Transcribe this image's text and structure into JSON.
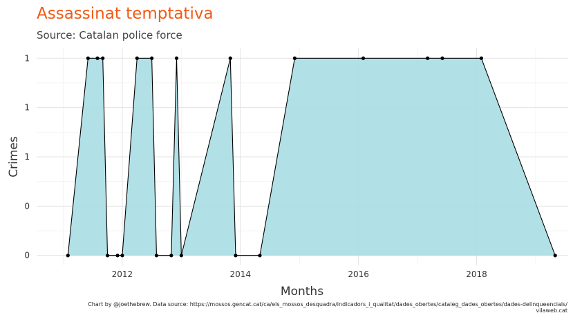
{
  "chart_data": {
    "type": "area",
    "title": "Assassinat temptativa",
    "subtitle": "Source: Catalan police force",
    "xlabel": "Months",
    "ylabel": "Crimes",
    "y_tick_labels": [
      "0",
      "0",
      "1",
      "1",
      "1"
    ],
    "y_tick_values": [
      0,
      0.25,
      0.5,
      0.75,
      1
    ],
    "x_tick_labels": [
      "2012",
      "2014",
      "2016",
      "2018"
    ],
    "x_tick_values": [
      2012,
      2014,
      2016,
      2018
    ],
    "xlim": [
      2010.55,
      2019.55
    ],
    "ylim": [
      -0.05,
      1.05
    ],
    "grid": true,
    "fill_color": "#a8dde3",
    "line_color": "#000000",
    "points": [
      {
        "x": 2011.08,
        "y": 0
      },
      {
        "x": 2011.42,
        "y": 1
      },
      {
        "x": 2011.58,
        "y": 1
      },
      {
        "x": 2011.67,
        "y": 1
      },
      {
        "x": 2011.75,
        "y": 0
      },
      {
        "x": 2011.92,
        "y": 0
      },
      {
        "x": 2012.0,
        "y": 0
      },
      {
        "x": 2012.25,
        "y": 1
      },
      {
        "x": 2012.5,
        "y": 1
      },
      {
        "x": 2012.58,
        "y": 0
      },
      {
        "x": 2012.83,
        "y": 0
      },
      {
        "x": 2012.92,
        "y": 1
      },
      {
        "x": 2013.0,
        "y": 0
      },
      {
        "x": 2013.83,
        "y": 1
      },
      {
        "x": 2013.92,
        "y": 0
      },
      {
        "x": 2014.33,
        "y": 0
      },
      {
        "x": 2014.92,
        "y": 1
      },
      {
        "x": 2016.08,
        "y": 1
      },
      {
        "x": 2017.17,
        "y": 1
      },
      {
        "x": 2017.42,
        "y": 1
      },
      {
        "x": 2018.08,
        "y": 1
      },
      {
        "x": 2019.33,
        "y": 0
      }
    ]
  },
  "caption": {
    "line1": "Chart by @joethebrew. Data source: https://mossos.gencat.cat/ca/els_mossos_desquadra/indicadors_i_qualitat/dades_obertes/cataleg_dades_obertes/dades-delinqueencials/",
    "line2": "vilaweb.cat"
  }
}
